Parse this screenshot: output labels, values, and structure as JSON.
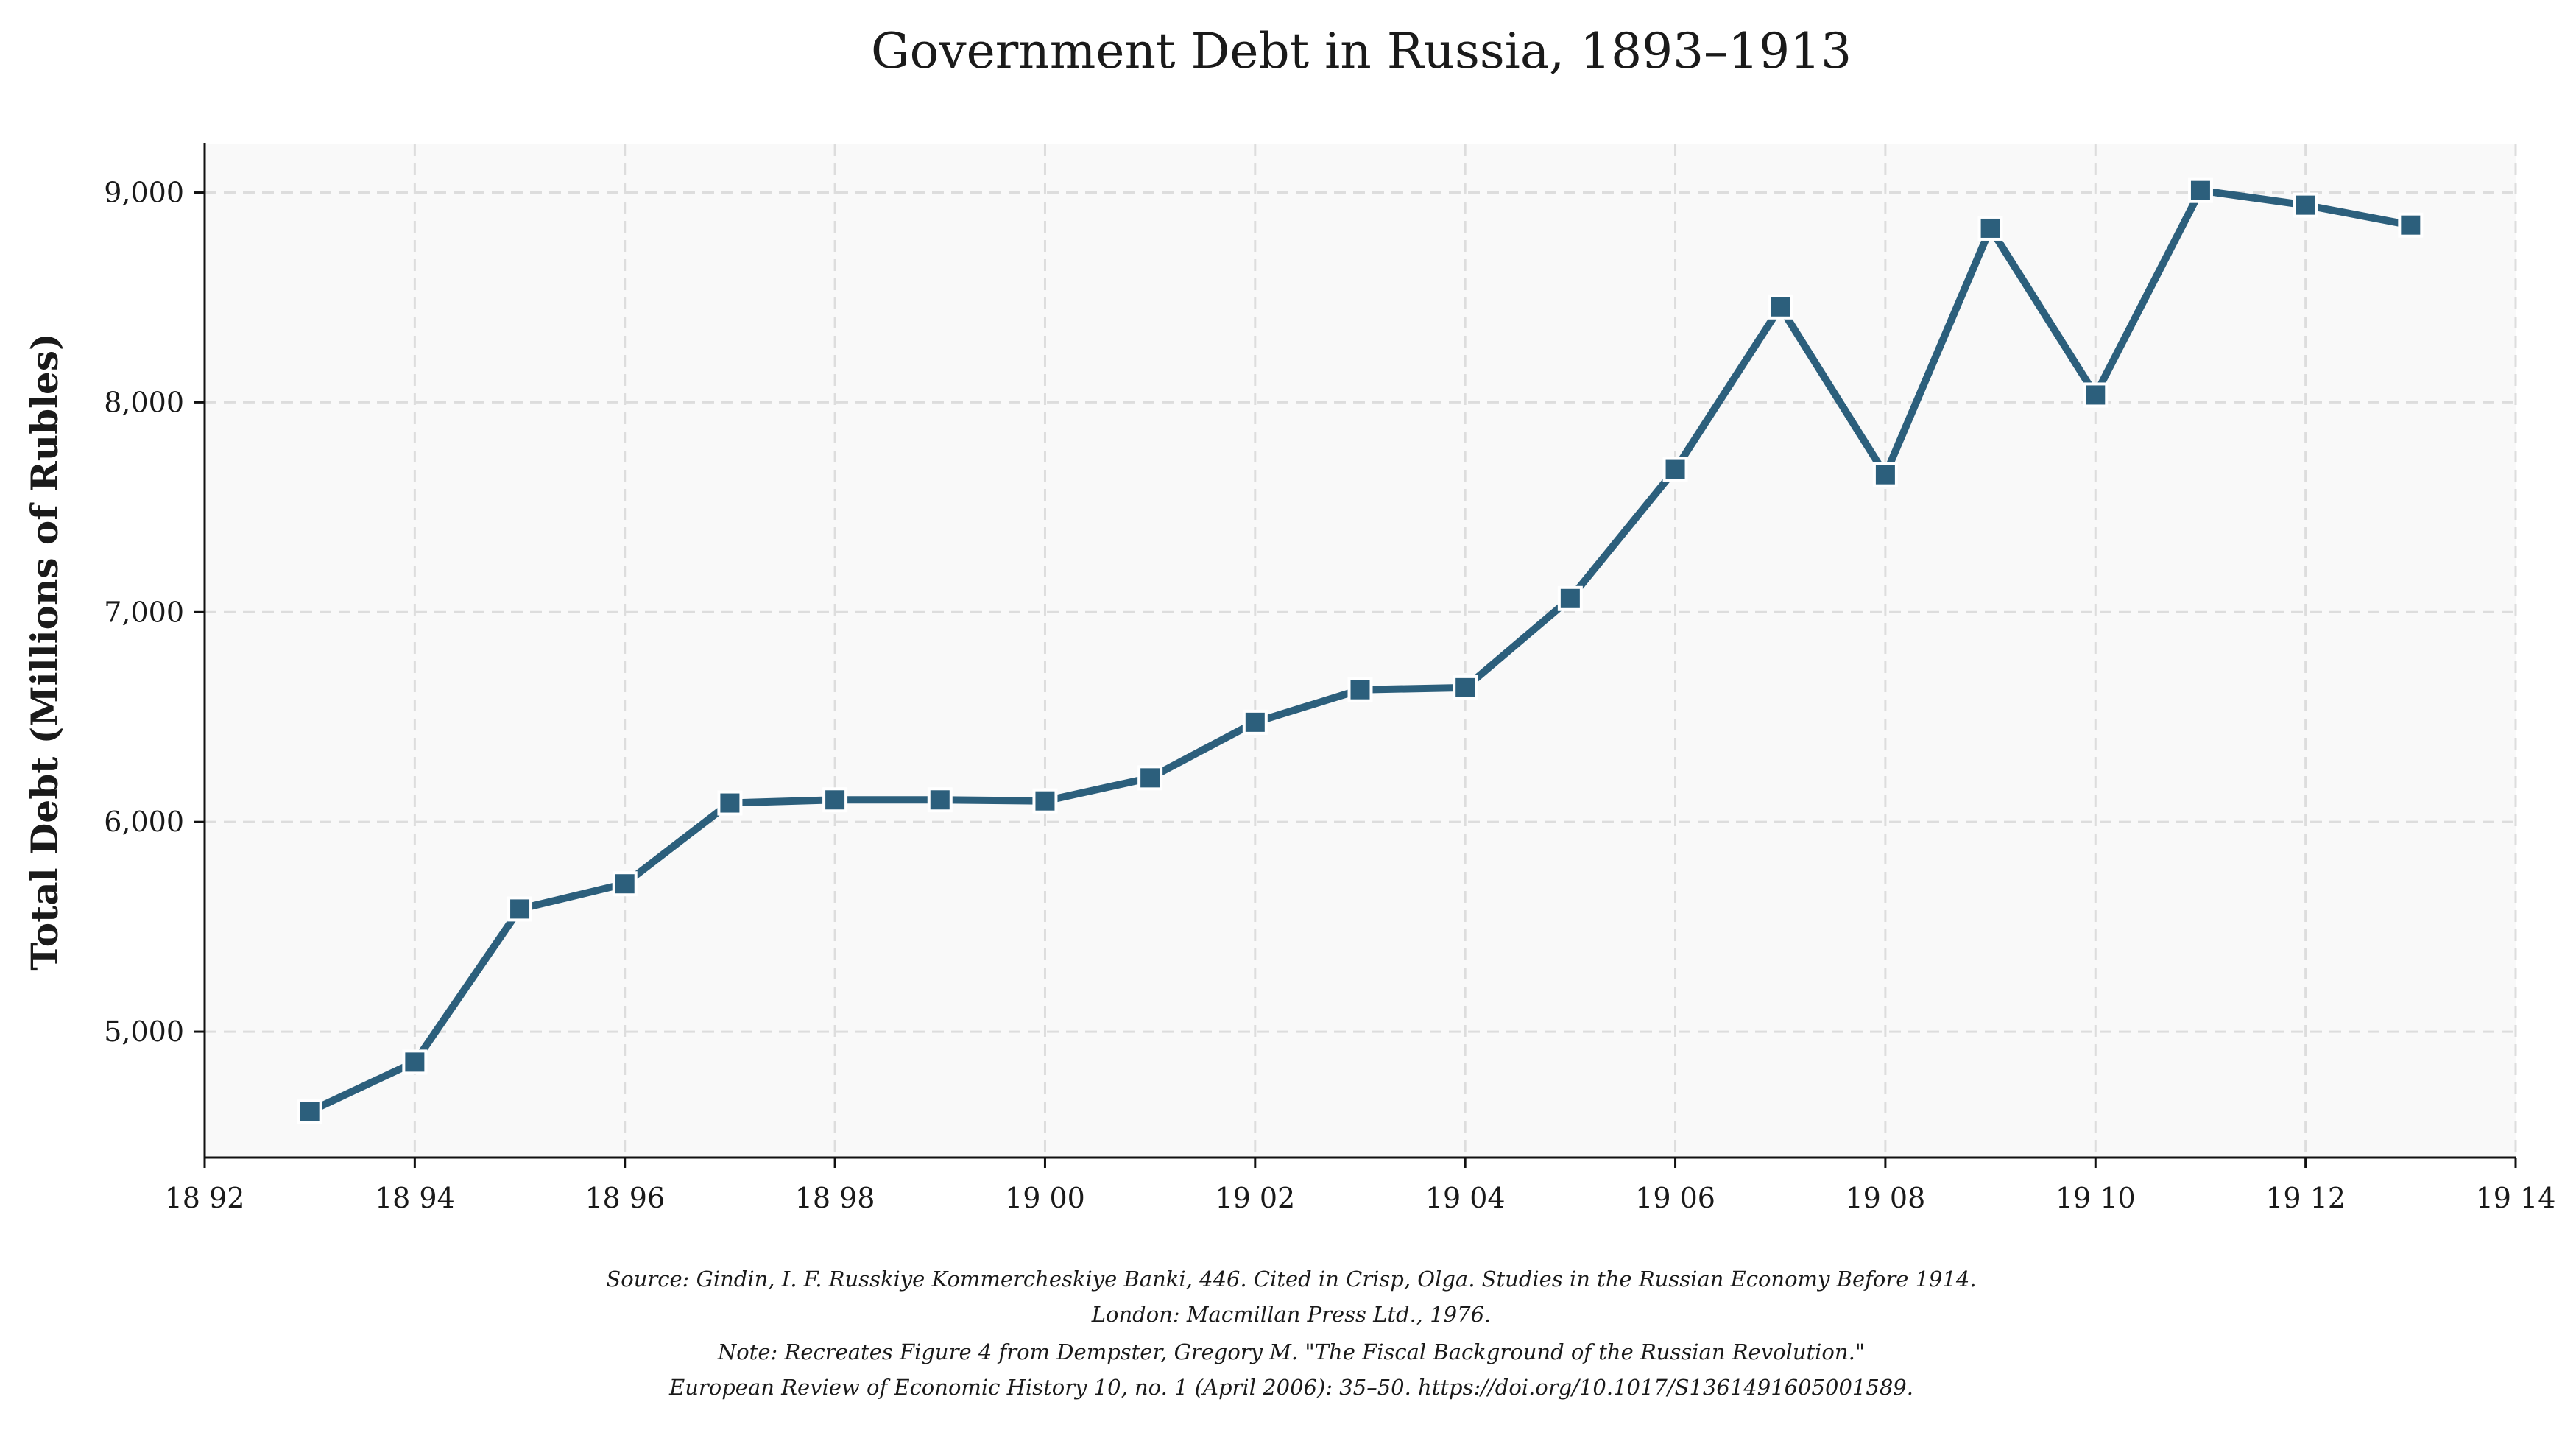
{
  "chart_data": {
    "type": "line",
    "title": "Government Debt in Russia, 1893–1913",
    "xlabel": "",
    "ylabel": "Total Debt (Millions of Rubles)",
    "x": [
      1893,
      1894,
      1895,
      1896,
      1897,
      1898,
      1899,
      1900,
      1901,
      1902,
      1903,
      1904,
      1905,
      1906,
      1907,
      1908,
      1909,
      1910,
      1911,
      1912,
      1913
    ],
    "values": [
      4620,
      4855,
      5585,
      5705,
      6090,
      6105,
      6105,
      6100,
      6210,
      6475,
      6630,
      6640,
      7065,
      7680,
      8455,
      7655,
      8830,
      8035,
      9010,
      8940,
      8845
    ],
    "xlim": [
      1892,
      1914
    ],
    "ylim": [
      4400,
      9230
    ],
    "x_ticks": [
      1892,
      1894,
      1896,
      1898,
      1900,
      1902,
      1904,
      1906,
      1908,
      1910,
      1912,
      1914
    ],
    "x_tick_labels": [
      "18 92",
      "18 94",
      "18 96",
      "18 98",
      "19 00",
      "19 02",
      "19 04",
      "19 06",
      "19 08",
      "19 10",
      "19 12",
      "19 14"
    ],
    "y_ticks": [
      5000,
      6000,
      7000,
      8000,
      9000
    ],
    "y_tick_labels": [
      "5,000",
      "6,000",
      "7,000",
      "8,000",
      "9,000"
    ],
    "grid": true,
    "legend": "none",
    "colors": {
      "line": "#2c5f7c",
      "marker": "#2c5f7c",
      "marker_edge": "#ffffff",
      "plot_background": "#f9f9f9",
      "grid": "#dddddd"
    },
    "notes": [
      "Source: Gindin, I. F. Russkiye Kommercheskiye Banki, 446. Cited in Crisp, Olga. Studies in the Russian Economy Before 1914.",
      "London: Macmillan Press Ltd., 1976.",
      "Note: Recreates Figure 4 from Dempster, Gregory M. \"The Fiscal Background of the Russian Revolution.\"",
      "European Review of Economic History 10, no. 1 (April 2006): 35–50. https://doi.org/10.1017/S1361491605001589."
    ]
  }
}
